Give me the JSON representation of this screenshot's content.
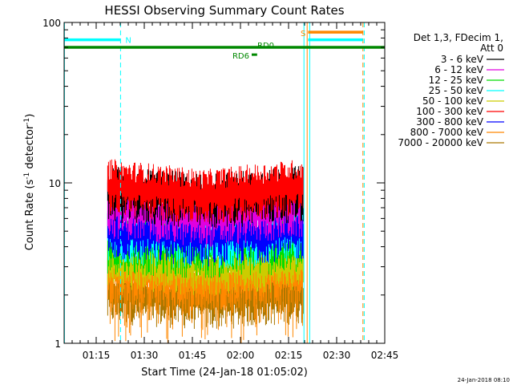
{
  "chart_data": {
    "type": "line",
    "title": "HESSI Observing Summary Count Rates",
    "xlabel": "Start Time (24-Jan-18 01:05:02)",
    "ylabel_main": "Count Rate (s",
    "ylabel_sup1": "-1",
    "ylabel_mid": " detector",
    "ylabel_sup2": "-1",
    "ylabel_end": ")",
    "yscale": "log",
    "ylim": [
      1,
      100
    ],
    "y_ticks": [
      {
        "value": 1,
        "label": "1"
      },
      {
        "value": 10,
        "label": "10"
      },
      {
        "value": 100,
        "label": "100"
      }
    ],
    "x_range_minutes": [
      0,
      100
    ],
    "x_ticks": [
      {
        "minute": 10,
        "label": "01:15"
      },
      {
        "minute": 25,
        "label": "01:30"
      },
      {
        "minute": 40,
        "label": "01:45"
      },
      {
        "minute": 55,
        "label": "02:00"
      },
      {
        "minute": 70,
        "label": "02:15"
      },
      {
        "minute": 85,
        "label": "02:30"
      },
      {
        "minute": 100,
        "label": "02:45"
      }
    ],
    "data_interval_minutes": [
      13.6,
      74.6
    ],
    "legend_header": [
      "Det 1,3, FDecim 1,",
      "Att 0"
    ],
    "legend_position": "right",
    "series": [
      {
        "name": "3 - 6 keV",
        "color": "#000000",
        "baseline": [
          9.5,
          8.5,
          9.5
        ]
      },
      {
        "name": "6 - 12 keV",
        "color": "#e000e0",
        "baseline": [
          7.5,
          6.5,
          7.5
        ]
      },
      {
        "name": "12 - 25 keV",
        "color": "#00dd00",
        "baseline": [
          4.5,
          4.2,
          4.5
        ]
      },
      {
        "name": "25 - 50 keV",
        "color": "#00ffff",
        "baseline": [
          5.2,
          4.8,
          5.2
        ]
      },
      {
        "name": "50 - 100 keV",
        "color": "#cccc00",
        "baseline": [
          3.5,
          3.3,
          3.5
        ]
      },
      {
        "name": "100 - 300 keV",
        "color": "#ff0000",
        "baseline": [
          10.5,
          9.0,
          10.5
        ]
      },
      {
        "name": "300 - 800 keV",
        "color": "#0000ff",
        "baseline": [
          5.5,
          5.0,
          5.5
        ]
      },
      {
        "name": "800 - 7000 keV",
        "color": "#ff8800",
        "baseline": [
          3.0,
          2.6,
          3.0
        ]
      },
      {
        "name": "7000 - 20000 keV",
        "color": "#aa7700",
        "baseline": [
          2.2,
          2.0,
          2.2
        ]
      }
    ],
    "flag_segments": [
      {
        "label": "N",
        "color": "#00ffff",
        "start": 0,
        "end": 17.6,
        "level": 78,
        "label_position": "right",
        "width": 3.5
      },
      {
        "label": "RD0",
        "color": "#008800",
        "start": 0,
        "end": 100,
        "level": 70,
        "label_position": "inline",
        "width": 3.5
      },
      {
        "label": "RD6",
        "color": "#008800",
        "start": 58.5,
        "end": 60.2,
        "level": 63,
        "label_position": "left",
        "width": 3
      },
      {
        "label": "S",
        "color": "#ff8800",
        "start": 76.1,
        "end": 93.2,
        "level": 87,
        "label_position": "left",
        "width": 3.5
      },
      {
        "label": "",
        "color": "#00ffff",
        "start": 76.1,
        "end": 93.2,
        "level": 78,
        "label_position": "none",
        "width": 3.5
      }
    ],
    "vertical_markers": [
      {
        "minute": 0.1,
        "color": "#00ffff",
        "style": "solid"
      },
      {
        "minute": 17.6,
        "color": "#00ffff",
        "style": "dashed"
      },
      {
        "minute": 74.8,
        "color": "#00ffff",
        "style": "solid"
      },
      {
        "minute": 75.8,
        "color": "#ff8800",
        "style": "solid"
      },
      {
        "minute": 76.6,
        "color": "#00ffff",
        "style": "solid"
      },
      {
        "minute": 93.2,
        "color": "#ff8800",
        "style": "dashed"
      },
      {
        "minute": 93.6,
        "color": "#00ffff",
        "style": "dashed"
      }
    ]
  },
  "footer_date": "24-Jan-2018 08:10"
}
